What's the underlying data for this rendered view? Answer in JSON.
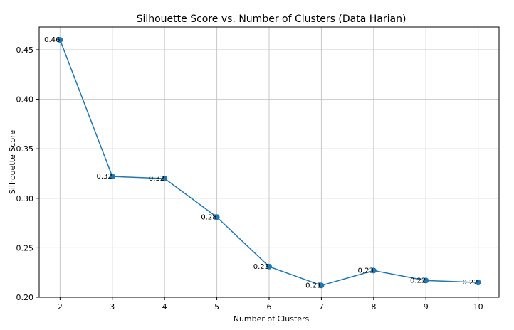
{
  "chart_data": {
    "type": "line",
    "title": "Silhouette Score vs. Number of Clusters (Data Harian)",
    "xlabel": "Number of Clusters",
    "ylabel": "Silhouette Score",
    "x": [
      2,
      3,
      4,
      5,
      6,
      7,
      8,
      9,
      10
    ],
    "y": [
      0.46,
      0.322,
      0.32,
      0.281,
      0.231,
      0.212,
      0.227,
      0.217,
      0.215
    ],
    "point_labels": [
      "0.46",
      "0.32",
      "0.32",
      "0.28",
      "0.23",
      "0.21",
      "0.23",
      "0.22",
      "0.22"
    ],
    "xticks": [
      "2",
      "3",
      "4",
      "5",
      "6",
      "7",
      "8",
      "9",
      "10"
    ],
    "yticks": [
      "0.20",
      "0.25",
      "0.30",
      "0.35",
      "0.40",
      "0.45"
    ],
    "xlim": [
      1.6,
      10.4
    ],
    "ylim": [
      0.2,
      0.473
    ],
    "grid": true,
    "marker": "circle",
    "line_color": "#1f77b4"
  }
}
